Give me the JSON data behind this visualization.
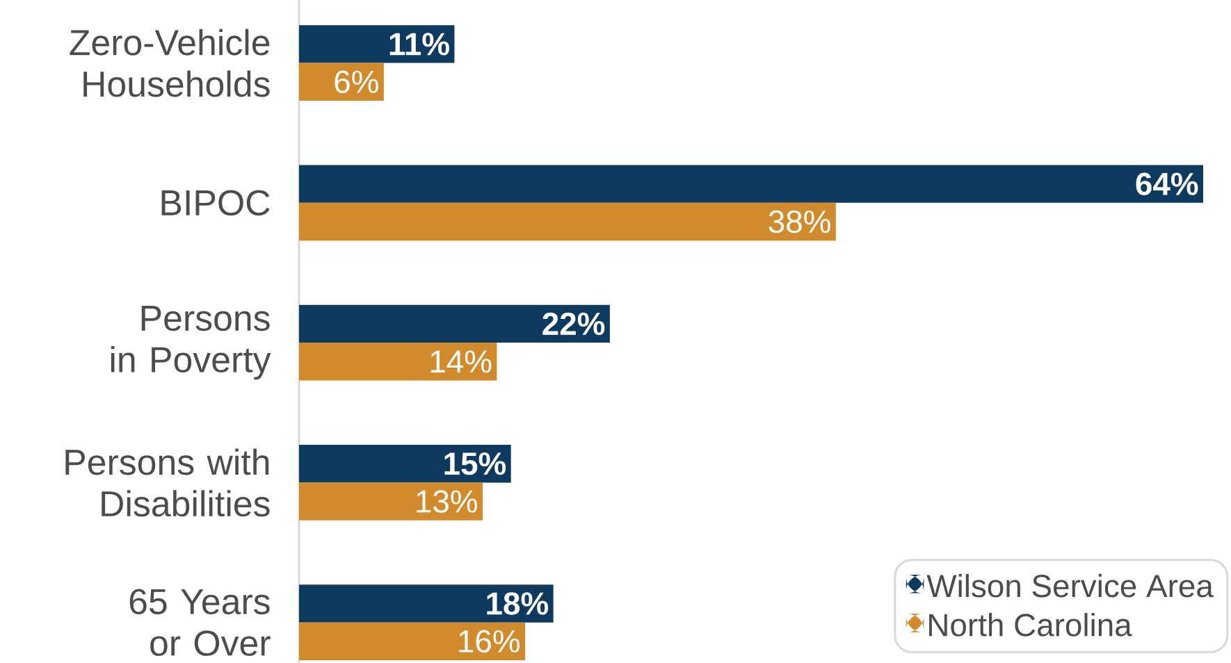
{
  "chart_data": {
    "type": "bar",
    "orientation": "horizontal",
    "categories": [
      "Zero-Vehicle Households",
      "BIPOC",
      "Persons in Poverty",
      "Persons with Disabilities",
      "65 Years or Over"
    ],
    "series": [
      {
        "name": "Wilson Service Area",
        "color": "#0e3a5f",
        "values": [
          11,
          64,
          22,
          15,
          18
        ],
        "value_labels": [
          "11%",
          "64%",
          "22%",
          "15%",
          "18%"
        ]
      },
      {
        "name": "North Carolina",
        "color": "#d18b2c",
        "values": [
          6,
          38,
          14,
          13,
          16
        ],
        "value_labels": [
          "6%",
          "38%",
          "14%",
          "13%",
          "16%"
        ]
      }
    ],
    "legend": "bottom right"
  }
}
